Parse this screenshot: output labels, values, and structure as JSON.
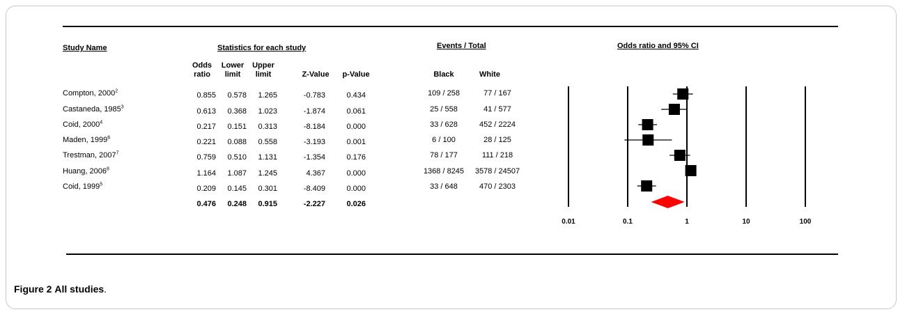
{
  "headers": {
    "study_name": "Study Name",
    "statistics": "Statistics for each study",
    "events": "Events / Total",
    "forest": "Odds ratio and 95% CI"
  },
  "columns": {
    "odds": [
      "Odds",
      "ratio"
    ],
    "lower": [
      "Lower",
      "limit"
    ],
    "upper": [
      "Upper",
      "limit"
    ],
    "z": "Z-Value",
    "p": "p-Value",
    "black": "Black",
    "white": "White"
  },
  "studies": [
    {
      "name": "Compton, 2000",
      "ref": "2",
      "or": "0.855",
      "lower": "0.578",
      "upper": "1.265",
      "z": "-0.783",
      "p": "0.434",
      "black": "109 / 258",
      "white": "77 / 167"
    },
    {
      "name": "Castaneda, 1985",
      "ref": "3",
      "or": "0.613",
      "lower": "0.368",
      "upper": "1.023",
      "z": "-1.874",
      "p": "0.061",
      "black": "25 / 558",
      "white": "41 / 577"
    },
    {
      "name": "Coid, 2000",
      "ref": "4",
      "or": "0.217",
      "lower": "0.151",
      "upper": "0.313",
      "z": "-8.184",
      "p": "0.000",
      "black": "33 / 628",
      "white": "452 / 2224"
    },
    {
      "name": "Maden, 1999",
      "ref": "6",
      "or": "0.221",
      "lower": "0.088",
      "upper": "0.558",
      "z": "-3.193",
      "p": "0.001",
      "black": "6 / 100",
      "white": "28 / 125"
    },
    {
      "name": "Trestman, 2007",
      "ref": "7",
      "or": "0.759",
      "lower": "0.510",
      "upper": "1.131",
      "z": "-1.354",
      "p": "0.176",
      "black": "78 / 177",
      "white": "111 / 218"
    },
    {
      "name": "Huang, 2006",
      "ref": "8",
      "or": "1.164",
      "lower": "1.087",
      "upper": "1.245",
      "z": "4.367",
      "p": "0.000",
      "black": "1368 / 8245",
      "white": "3578 / 24507"
    },
    {
      "name": "Coid, 1999",
      "ref": "5",
      "or": "0.209",
      "lower": "0.145",
      "upper": "0.301",
      "z": "-8.409",
      "p": "0.000",
      "black": "33 / 648",
      "white": "470 / 2303"
    }
  ],
  "pooled": {
    "or": "0.476",
    "lower": "0.248",
    "upper": "0.915",
    "z": "-2.227",
    "p": "0.026"
  },
  "caption": {
    "label": "Figure 2",
    "title": "All studies",
    "end": "."
  },
  "chart_data": {
    "type": "forest",
    "scale": "log",
    "xlim": [
      0.01,
      100
    ],
    "ticks": [
      0.01,
      0.1,
      1,
      10,
      100
    ],
    "tick_labels": [
      "0.01",
      "0.1",
      "1",
      "10",
      "100"
    ],
    "reference_line": 1,
    "studies": [
      {
        "or": 0.855,
        "lower": 0.578,
        "upper": 1.265
      },
      {
        "or": 0.613,
        "lower": 0.368,
        "upper": 1.023
      },
      {
        "or": 0.217,
        "lower": 0.151,
        "upper": 0.313
      },
      {
        "or": 0.221,
        "lower": 0.088,
        "upper": 0.558
      },
      {
        "or": 0.759,
        "lower": 0.51,
        "upper": 1.131
      },
      {
        "or": 1.164,
        "lower": 1.087,
        "upper": 1.245
      },
      {
        "or": 0.209,
        "lower": 0.145,
        "upper": 0.301
      }
    ],
    "pooled": {
      "or": 0.476,
      "lower": 0.248,
      "upper": 0.915
    },
    "colors": {
      "marker": "#000000",
      "pooled": "#ff0000"
    }
  }
}
